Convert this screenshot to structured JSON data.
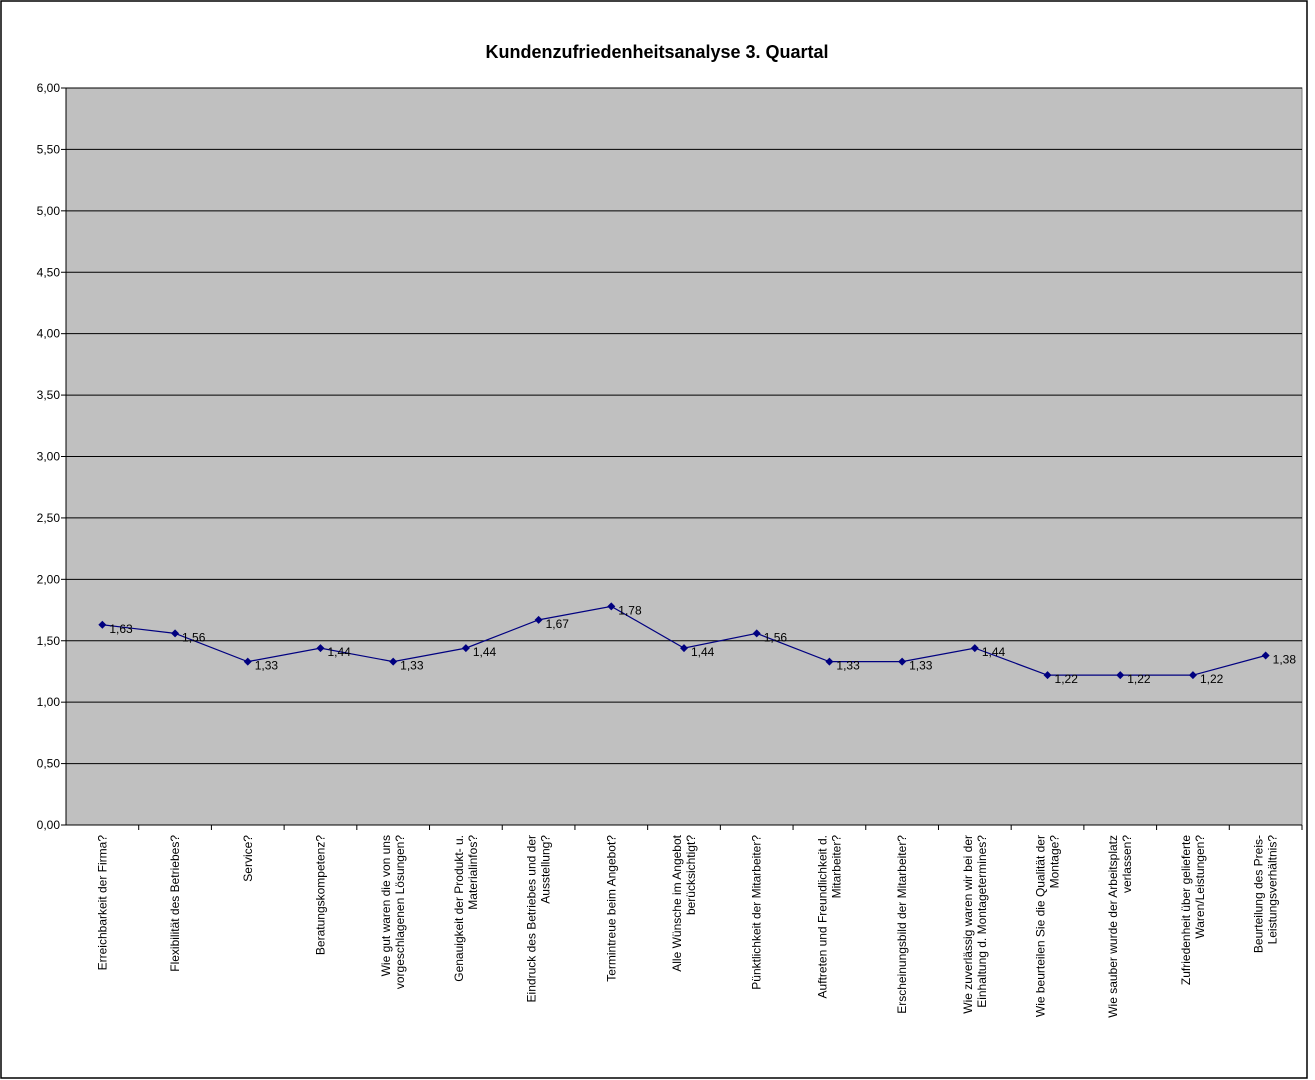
{
  "chart_data": {
    "type": "line",
    "title": "Kundenzufriedenheitsanalyse 3. Quartal",
    "categories": [
      "Erreichbarkeit der Firma?",
      "Flexibilität des Betriebes?",
      "Service?",
      "Beratungskompetenz?",
      "Wie gut waren die von uns vorgeschlagenen Lösungen?",
      "Genauigkeit der Produkt- u. Materialinfos?",
      "Eindruck des Betriebes und der Ausstellung?",
      "Termintreue beim Angebot?",
      "Alle Wünsche im Angebot berücksichtigt?",
      "Pünktlichkeit der Mitarbeiter?",
      "Auftreten und Freundlichkeit d. Mitarbeiter?",
      "Erscheinungsbild der Mitarbeiter?",
      "Wie zuverlässig waren wir bei der Einhaltung d. Montagetermines?",
      "Wie beurteilen Sie die Qualität der Montage?",
      "Wie sauber wurde der Arbeitsplatz verlassen?",
      "Zufriedenheit über gelieferte Waren/Leistungen?",
      "Beurteilung des Preis-Leistungsverhältnis?"
    ],
    "values": [
      1.63,
      1.56,
      1.33,
      1.44,
      1.33,
      1.44,
      1.67,
      1.78,
      1.44,
      1.56,
      1.33,
      1.33,
      1.44,
      1.22,
      1.22,
      1.22,
      1.38
    ],
    "value_labels": [
      "1,63",
      "1,56",
      "1,33",
      "1,44",
      "1,33",
      "1,44",
      "1,67",
      "1,78",
      "1,44",
      "1,56",
      "1,33",
      "1,33",
      "1,44",
      "1,22",
      "1,22",
      "1,22",
      "1,38"
    ],
    "color": "#000080",
    "ylim": [
      0,
      6
    ],
    "yticks": [
      {
        "value": 0,
        "label": "0,00"
      },
      {
        "value": 0.5,
        "label": "0,50"
      },
      {
        "value": 1,
        "label": "1,00"
      },
      {
        "value": 1.5,
        "label": "1,50"
      },
      {
        "value": 2,
        "label": "2,00"
      },
      {
        "value": 2.5,
        "label": "2,50"
      },
      {
        "value": 3,
        "label": "3,00"
      },
      {
        "value": 3.5,
        "label": "3,50"
      },
      {
        "value": 4,
        "label": "4,00"
      },
      {
        "value": 4.5,
        "label": "4,50"
      },
      {
        "value": 5,
        "label": "5,00"
      },
      {
        "value": 5.5,
        "label": "5,50"
      },
      {
        "value": 6,
        "label": "6,00"
      }
    ],
    "grid": true
  }
}
